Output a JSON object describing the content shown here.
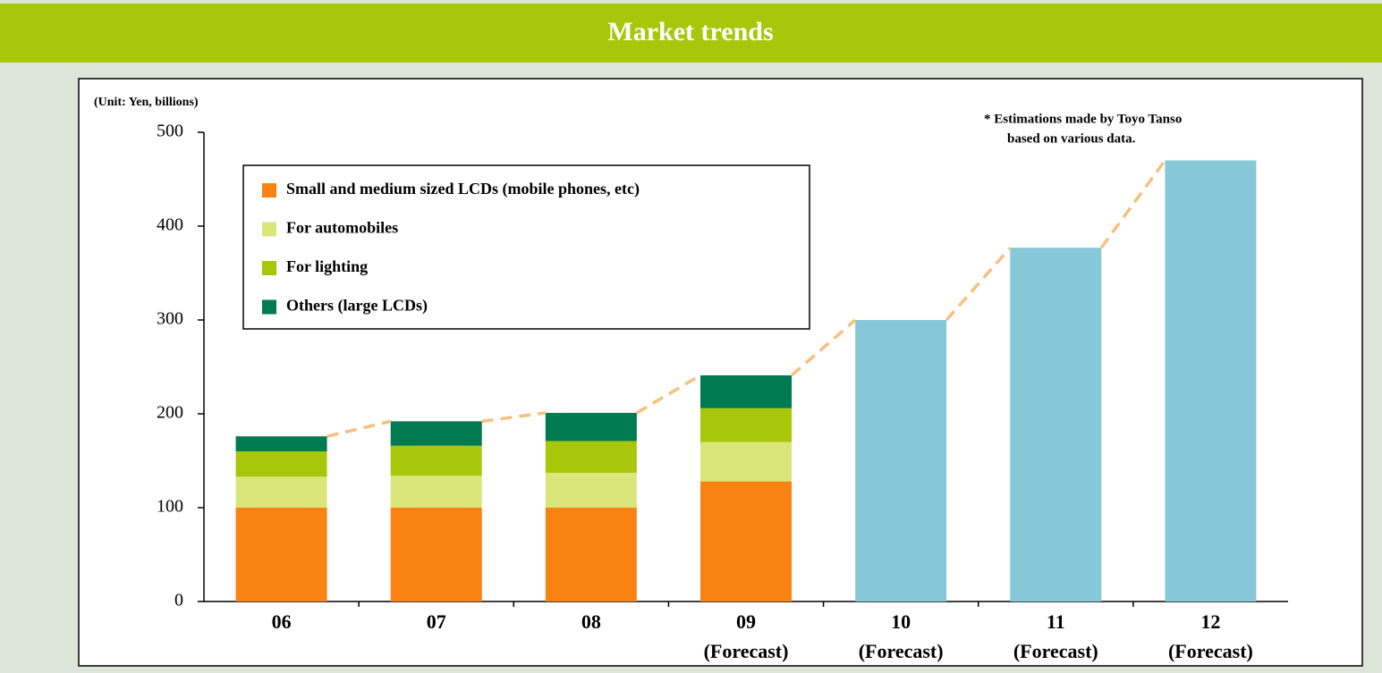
{
  "header": {
    "title": "Market trends"
  },
  "chart_data": {
    "type": "bar",
    "stacked": true,
    "ylabel": "(Unit: Yen, billions)",
    "note": [
      "* Estimations made by Toyo Tanso",
      "based on various data."
    ],
    "categories": [
      "06",
      "07",
      "08",
      "09",
      "10",
      "11",
      "12"
    ],
    "category_notes": [
      null,
      null,
      null,
      "(Forecast)",
      "(Forecast)",
      "(Forecast)",
      "(Forecast)"
    ],
    "series": [
      {
        "name": "Small and medium sized LCDs (mobile phones, etc)",
        "color": "#f98213",
        "values": [
          100,
          100,
          100,
          128,
          null,
          null,
          null
        ]
      },
      {
        "name": "For automobiles",
        "color": "#dbe67a",
        "values": [
          33,
          34,
          37,
          42,
          null,
          null,
          null
        ]
      },
      {
        "name": "For lighting",
        "color": "#a8c60a",
        "values": [
          27,
          32,
          34,
          36,
          null,
          null,
          null
        ]
      },
      {
        "name": "Others (large LCDs)",
        "color": "#007a50",
        "values": [
          16,
          26,
          30,
          35,
          null,
          null,
          null
        ]
      },
      {
        "color": "#87c8d8",
        "values": [
          null,
          null,
          null,
          null,
          300,
          377,
          470
        ]
      }
    ],
    "trend_line_color": "#f8c07e",
    "ylim": [
      0,
      500
    ],
    "yticks": [
      0,
      100,
      200,
      300,
      400,
      500
    ],
    "grid": false,
    "legend": "upper left"
  }
}
